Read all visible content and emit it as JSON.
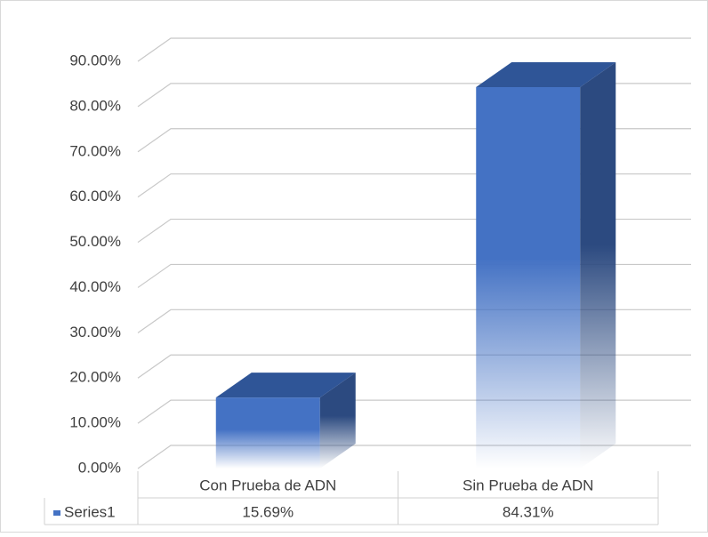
{
  "chart_data": {
    "type": "bar3d",
    "categories": [
      "Con Prueba de ADN",
      "Sin Prueba de ADN"
    ],
    "series": [
      {
        "name": "Series1",
        "color": "#4472c4",
        "values": [
          15.69,
          84.31
        ],
        "value_labels": [
          "15.69%",
          "84.31%"
        ]
      }
    ],
    "ylim": [
      0,
      90
    ],
    "yticks": [
      {
        "value": 0,
        "label": "0.00%"
      },
      {
        "value": 10,
        "label": "10.00%"
      },
      {
        "value": 20,
        "label": "20.00%"
      },
      {
        "value": 30,
        "label": "30.00%"
      },
      {
        "value": 40,
        "label": "40.00%"
      },
      {
        "value": 50,
        "label": "50.00%"
      },
      {
        "value": 60,
        "label": "60.00%"
      },
      {
        "value": 70,
        "label": "70.00%"
      },
      {
        "value": 80,
        "label": "80.00%"
      },
      {
        "value": 90,
        "label": "90.00%"
      }
    ],
    "grid": true,
    "data_table": true
  }
}
